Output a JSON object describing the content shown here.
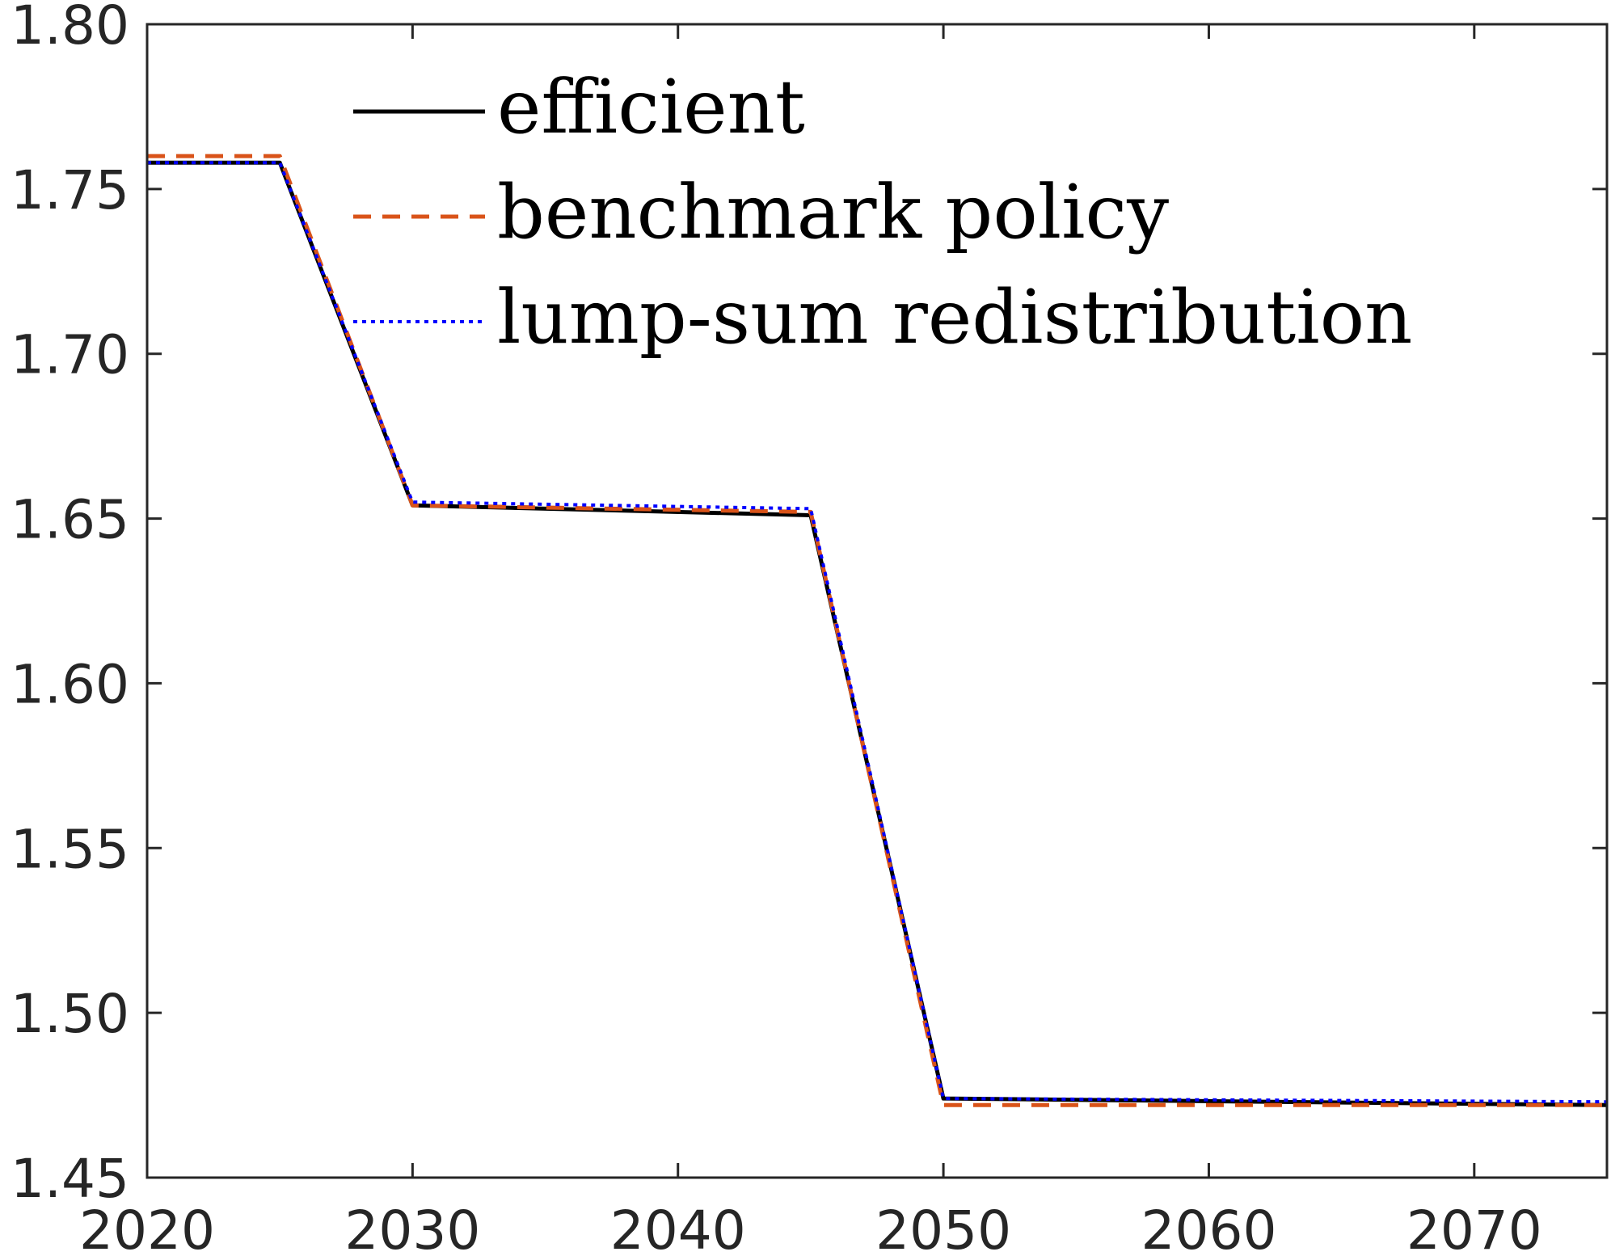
{
  "chart_data": {
    "type": "line",
    "title": "",
    "xlabel": "",
    "ylabel": "",
    "xlim": [
      2020,
      2075
    ],
    "ylim": [
      1.45,
      1.8
    ],
    "x_ticks": [
      2020,
      2030,
      2040,
      2050,
      2060,
      2070
    ],
    "x_tick_labels": [
      "2020",
      "2030",
      "2040",
      "2050",
      "2060",
      "2070"
    ],
    "y_ticks": [
      1.45,
      1.5,
      1.55,
      1.6,
      1.65,
      1.7,
      1.75,
      1.8
    ],
    "y_tick_labels": [
      "1.45",
      "1.50",
      "1.55",
      "1.60",
      "1.65",
      "1.70",
      "1.75",
      "1.80"
    ],
    "grid": false,
    "legend_position": "top-left",
    "series": [
      {
        "name": "efficient",
        "color": "#000000",
        "style": "solid",
        "x": [
          2020,
          2025,
          2030,
          2045,
          2050,
          2075
        ],
        "y": [
          1.758,
          1.758,
          1.654,
          1.651,
          1.474,
          1.472
        ]
      },
      {
        "name": "benchmark policy",
        "color": "#D95319",
        "style": "dashed",
        "x": [
          2020,
          2025,
          2030,
          2045,
          2050,
          2075
        ],
        "y": [
          1.76,
          1.76,
          1.654,
          1.652,
          1.472,
          1.472
        ]
      },
      {
        "name": "lump-sum redistribution",
        "color": "#0000FF",
        "style": "dotted",
        "x": [
          2020,
          2025,
          2030,
          2045,
          2050,
          2075
        ],
        "y": [
          1.758,
          1.758,
          1.655,
          1.653,
          1.474,
          1.473
        ]
      }
    ]
  }
}
